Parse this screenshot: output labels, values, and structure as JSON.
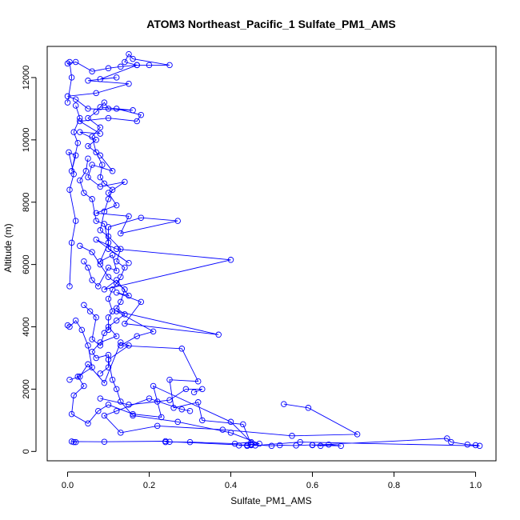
{
  "chart_data": {
    "type": "line",
    "title": "ATOM3 Northeast_Pacific_1 Sulfate_PM1_AMS",
    "xlabel": "Sulfate_PM1_AMS",
    "ylabel": "Altitude (m)",
    "xlim": [
      -0.05,
      1.05
    ],
    "ylim": [
      -300,
      13000
    ],
    "x_ticks": [
      0.0,
      0.2,
      0.4,
      0.6,
      0.8,
      1.0
    ],
    "x_tick_labels": [
      "0.0",
      "0.2",
      "0.4",
      "0.6",
      "0.8",
      "1.0"
    ],
    "y_ticks": [
      0,
      2000,
      4000,
      6000,
      8000,
      10000,
      12000
    ],
    "y_tick_labels": [
      "0",
      "2000",
      "4000",
      "6000",
      "8000",
      "10000",
      "12000"
    ],
    "grid": false,
    "marker": "open-circle",
    "series": [
      {
        "color": "#0000ff",
        "points": [
          [
            0.015,
            300
          ],
          [
            0.02,
            300
          ],
          [
            0.01,
            320
          ],
          [
            0.09,
            310
          ],
          [
            0.24,
            330
          ],
          [
            0.25,
            310
          ],
          [
            0.44,
            200
          ],
          [
            0.45,
            220
          ],
          [
            0.5,
            180
          ],
          [
            0.52,
            200
          ],
          [
            0.56,
            190
          ],
          [
            0.6,
            210
          ],
          [
            0.62,
            180
          ],
          [
            0.64,
            220
          ],
          [
            0.67,
            180
          ],
          [
            0.6,
            200
          ],
          [
            0.93,
            420
          ],
          [
            0.94,
            300
          ],
          [
            0.98,
            220
          ],
          [
            1.0,
            200
          ],
          [
            1.01,
            180
          ],
          [
            0.57,
            300
          ],
          [
            0.46,
            190
          ],
          [
            0.45,
            230
          ],
          [
            0.43,
            870
          ],
          [
            0.33,
            1000
          ],
          [
            0.32,
            1580
          ],
          [
            0.26,
            1400
          ],
          [
            0.25,
            2300
          ],
          [
            0.32,
            2250
          ],
          [
            0.28,
            3300
          ],
          [
            0.13,
            3400
          ],
          [
            0.17,
            3700
          ],
          [
            0.21,
            3850
          ],
          [
            0.12,
            4500
          ],
          [
            0.37,
            3750
          ],
          [
            0.14,
            4100
          ],
          [
            0.18,
            4800
          ],
          [
            0.12,
            5100
          ],
          [
            0.15,
            5000
          ],
          [
            0.12,
            5500
          ],
          [
            0.09,
            5200
          ],
          [
            0.4,
            6150
          ],
          [
            0.12,
            6500
          ],
          [
            0.07,
            6800
          ],
          [
            0.15,
            6050
          ],
          [
            0.1,
            6500
          ],
          [
            0.1,
            7200
          ],
          [
            0.18,
            7500
          ],
          [
            0.27,
            7400
          ],
          [
            0.13,
            7000
          ],
          [
            0.15,
            7550
          ],
          [
            0.07,
            7650
          ],
          [
            0.12,
            7900
          ],
          [
            0.1,
            8300
          ],
          [
            0.14,
            8650
          ],
          [
            0.08,
            8500
          ],
          [
            0.05,
            8800
          ],
          [
            0.06,
            9200
          ],
          [
            0.11,
            9000
          ],
          [
            0.08,
            9500
          ],
          [
            0.05,
            9800
          ],
          [
            0.07,
            10000
          ],
          [
            0.03,
            10250
          ],
          [
            0.08,
            10200
          ],
          [
            0.03,
            10600
          ],
          [
            0.1,
            10700
          ],
          [
            0.17,
            10600
          ],
          [
            0.18,
            10800
          ],
          [
            0.12,
            11000
          ],
          [
            0.08,
            11050
          ],
          [
            0.16,
            10950
          ],
          [
            0.05,
            11000
          ],
          [
            0.02,
            11300
          ],
          [
            0.0,
            11400
          ],
          [
            0.07,
            11500
          ],
          [
            0.15,
            11800
          ],
          [
            0.05,
            11900
          ],
          [
            0.12,
            12000
          ],
          [
            0.08,
            11950
          ],
          [
            0.17,
            12400
          ],
          [
            0.14,
            12500
          ],
          [
            0.15,
            12750
          ],
          [
            0.16,
            12600
          ],
          [
            0.25,
            12400
          ],
          [
            0.2,
            12400
          ],
          [
            0.17,
            12400
          ],
          [
            0.13,
            12350
          ],
          [
            0.1,
            12300
          ],
          [
            0.06,
            12200
          ],
          [
            0.02,
            12500
          ],
          [
            0.0,
            12450
          ],
          [
            0.005,
            12500
          ],
          [
            0.01,
            12000
          ],
          [
            0.0,
            11200
          ]
        ]
      },
      {
        "color": "#0000ff",
        "points": [
          [
            0.0,
            4050
          ],
          [
            0.005,
            4000
          ],
          [
            0.02,
            4200
          ],
          [
            0.035,
            3900
          ],
          [
            0.05,
            3400
          ],
          [
            0.06,
            2700
          ],
          [
            0.025,
            2400
          ],
          [
            0.04,
            2100
          ],
          [
            0.015,
            1800
          ],
          [
            0.01,
            1200
          ],
          [
            0.05,
            900
          ],
          [
            0.075,
            1300
          ],
          [
            0.1,
            1500
          ],
          [
            0.16,
            1200
          ],
          [
            0.23,
            1100
          ],
          [
            0.21,
            2100
          ],
          [
            0.4,
            950
          ],
          [
            0.45,
            300
          ],
          [
            0.41,
            250
          ],
          [
            0.3,
            300
          ],
          [
            0.24,
            300
          ]
        ]
      },
      {
        "color": "#0000ff",
        "points": [
          [
            0.005,
            2300
          ],
          [
            0.03,
            2400
          ],
          [
            0.05,
            2800
          ],
          [
            0.09,
            2200
          ],
          [
            0.13,
            3500
          ],
          [
            0.15,
            3400
          ],
          [
            0.1,
            2950
          ],
          [
            0.11,
            2300
          ],
          [
            0.12,
            2000
          ],
          [
            0.13,
            1600
          ],
          [
            0.16,
            1150
          ],
          [
            0.27,
            950
          ],
          [
            0.4,
            600
          ],
          [
            0.47,
            250
          ],
          [
            0.42,
            190
          ],
          [
            0.45,
            200
          ],
          [
            0.44,
            180
          ]
        ]
      },
      {
        "color": "#0000ff",
        "points": [
          [
            0.53,
            1520
          ],
          [
            0.59,
            1400
          ],
          [
            0.71,
            550
          ],
          [
            0.55,
            500
          ],
          [
            0.38,
            700
          ],
          [
            0.22,
            820
          ],
          [
            0.13,
            600
          ],
          [
            0.09,
            1150
          ],
          [
            0.12,
            1300
          ],
          [
            0.2,
            1700
          ],
          [
            0.28,
            1350
          ],
          [
            0.3,
            1300
          ]
        ]
      },
      {
        "color": "#0000ff",
        "points": [
          [
            0.005,
            5300
          ],
          [
            0.01,
            6700
          ],
          [
            0.02,
            7400
          ],
          [
            0.005,
            8400
          ],
          [
            0.015,
            8900
          ],
          [
            0.003,
            9600
          ],
          [
            0.02,
            9500
          ],
          [
            0.01,
            9000
          ],
          [
            0.025,
            9900
          ],
          [
            0.015,
            10250
          ],
          [
            0.03,
            10700
          ],
          [
            0.02,
            11100
          ]
        ]
      },
      {
        "color": "#0000ff",
        "points": [
          [
            0.04,
            6100
          ],
          [
            0.05,
            5900
          ],
          [
            0.06,
            5500
          ],
          [
            0.075,
            5300
          ],
          [
            0.1,
            5900
          ],
          [
            0.12,
            5800
          ],
          [
            0.11,
            6300
          ],
          [
            0.08,
            6100
          ],
          [
            0.1,
            6700
          ],
          [
            0.09,
            7300
          ],
          [
            0.07,
            7400
          ],
          [
            0.06,
            8100
          ],
          [
            0.04,
            8300
          ],
          [
            0.03,
            8700
          ],
          [
            0.045,
            9000
          ],
          [
            0.05,
            9400
          ]
        ]
      },
      {
        "color": "#0000ff",
        "points": [
          [
            0.04,
            4700
          ],
          [
            0.055,
            4500
          ],
          [
            0.07,
            4300
          ],
          [
            0.06,
            3600
          ],
          [
            0.08,
            3400
          ],
          [
            0.09,
            3800
          ],
          [
            0.1,
            3900
          ],
          [
            0.1,
            4300
          ],
          [
            0.11,
            4500
          ],
          [
            0.1,
            4900
          ],
          [
            0.11,
            5200
          ],
          [
            0.13,
            5600
          ],
          [
            0.14,
            5900
          ],
          [
            0.12,
            6100
          ],
          [
            0.13,
            6500
          ],
          [
            0.1,
            6900
          ],
          [
            0.08,
            7100
          ],
          [
            0.09,
            7700
          ],
          [
            0.1,
            8100
          ],
          [
            0.11,
            8400
          ],
          [
            0.09,
            8600
          ],
          [
            0.08,
            8800
          ],
          [
            0.085,
            9200
          ],
          [
            0.07,
            9600
          ],
          [
            0.06,
            10100
          ],
          [
            0.08,
            10400
          ],
          [
            0.05,
            10700
          ],
          [
            0.07,
            10900
          ],
          [
            0.09,
            11200
          ],
          [
            0.1,
            11000
          ]
        ]
      },
      {
        "color": "#0000ff",
        "points": [
          [
            0.03,
            6600
          ],
          [
            0.06,
            6400
          ],
          [
            0.08,
            6000
          ],
          [
            0.1,
            5600
          ],
          [
            0.12,
            5400
          ],
          [
            0.14,
            5200
          ],
          [
            0.13,
            4800
          ],
          [
            0.12,
            4600
          ],
          [
            0.14,
            4400
          ],
          [
            0.12,
            4200
          ],
          [
            0.1,
            4000
          ],
          [
            0.12,
            3700
          ],
          [
            0.08,
            3500
          ],
          [
            0.06,
            3200
          ],
          [
            0.07,
            3000
          ],
          [
            0.1,
            3100
          ],
          [
            0.1,
            2700
          ],
          [
            0.08,
            2500
          ]
        ]
      },
      {
        "color": "#0000ff",
        "points": [
          [
            0.08,
            1700
          ],
          [
            0.15,
            1500
          ],
          [
            0.22,
            1600
          ],
          [
            0.25,
            1650
          ],
          [
            0.29,
            2000
          ],
          [
            0.33,
            2000
          ],
          [
            0.31,
            1900
          ]
        ]
      }
    ]
  }
}
